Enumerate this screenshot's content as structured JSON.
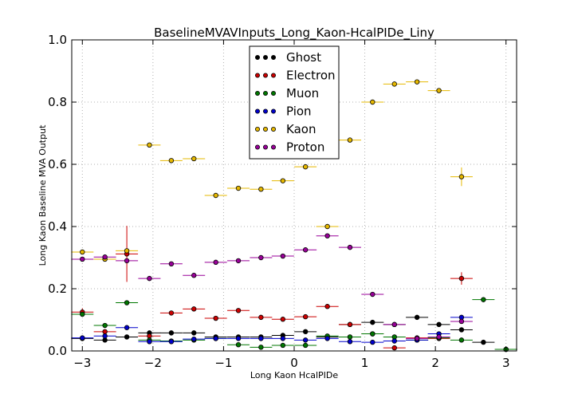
{
  "chart_data": {
    "type": "scatter",
    "title": "BaselineMVAVInputs_Long_Kaon-HcalPIDe_Liny",
    "xlabel": "Long Kaon HcalPIDe",
    "ylabel": "Long Kaon Baseline MVA Output",
    "xlim": [
      -3.15,
      3.15
    ],
    "ylim": [
      0.0,
      1.0
    ],
    "xticks": [
      -3,
      -2,
      -1,
      0,
      1,
      2,
      3
    ],
    "xtick_labels": [
      "−3",
      "−2",
      "−1",
      "0",
      "1",
      "2",
      "3"
    ],
    "yticks": [
      0.0,
      0.2,
      0.4,
      0.6,
      0.8,
      1.0
    ],
    "ytick_labels": [
      "0.0",
      "0.2",
      "0.4",
      "0.6",
      "0.8",
      "1.0"
    ],
    "grid": true,
    "legend_position": "top-center",
    "x_bin_half_width": 0.158,
    "series": [
      {
        "name": "Ghost",
        "color": "#000000",
        "points": [
          {
            "x": -3.0,
            "y": 0.04,
            "yerr": 0.003
          },
          {
            "x": -2.68,
            "y": 0.035,
            "yerr": 0.003
          },
          {
            "x": -2.37,
            "y": 0.045,
            "yerr": 0.003
          },
          {
            "x": -2.05,
            "y": 0.058,
            "yerr": 0.003
          },
          {
            "x": -1.74,
            "y": 0.058,
            "yerr": 0.003
          },
          {
            "x": -1.42,
            "y": 0.058,
            "yerr": 0.003
          },
          {
            "x": -1.11,
            "y": 0.045,
            "yerr": 0.003
          },
          {
            "x": -0.79,
            "y": 0.045,
            "yerr": 0.003
          },
          {
            "x": -0.47,
            "y": 0.045,
            "yerr": 0.003
          },
          {
            "x": -0.16,
            "y": 0.05,
            "yerr": 0.003
          },
          {
            "x": 0.16,
            "y": 0.062,
            "yerr": 0.004
          },
          {
            "x": 0.47,
            "y": 0.045,
            "yerr": 0.003
          },
          {
            "x": 0.79,
            "y": 0.085,
            "yerr": 0.004
          },
          {
            "x": 1.11,
            "y": 0.092,
            "yerr": 0.004
          },
          {
            "x": 1.42,
            "y": 0.085,
            "yerr": 0.004
          },
          {
            "x": 1.74,
            "y": 0.108,
            "yerr": 0.004
          },
          {
            "x": 2.05,
            "y": 0.085,
            "yerr": 0.004
          },
          {
            "x": 2.37,
            "y": 0.068,
            "yerr": 0.004
          },
          {
            "x": 2.68,
            "y": 0.028,
            "yerr": 0.003
          },
          {
            "x": 3.0,
            "y": 0.005,
            "yerr": 0.002
          }
        ]
      },
      {
        "name": "Electron",
        "color": "#cc0000",
        "points": [
          {
            "x": -3.0,
            "y": 0.125,
            "yerr": 0.012
          },
          {
            "x": -2.68,
            "y": 0.062,
            "yerr": 0.006
          },
          {
            "x": -2.37,
            "y": 0.312,
            "yerr": 0.09
          },
          {
            "x": -2.05,
            "y": 0.048,
            "yerr": 0.004
          },
          {
            "x": -1.74,
            "y": 0.122,
            "yerr": 0.005
          },
          {
            "x": -1.42,
            "y": 0.135,
            "yerr": 0.005
          },
          {
            "x": -1.11,
            "y": 0.105,
            "yerr": 0.004
          },
          {
            "x": -0.79,
            "y": 0.13,
            "yerr": 0.004
          },
          {
            "x": -0.47,
            "y": 0.108,
            "yerr": 0.004
          },
          {
            "x": -0.16,
            "y": 0.102,
            "yerr": 0.004
          },
          {
            "x": 0.16,
            "y": 0.11,
            "yerr": 0.004
          },
          {
            "x": 0.47,
            "y": 0.143,
            "yerr": 0.005
          },
          {
            "x": 0.79,
            "y": 0.085,
            "yerr": 0.004
          },
          {
            "x": 1.11,
            "y": 0.055,
            "yerr": 0.004
          },
          {
            "x": 1.42,
            "y": 0.01,
            "yerr": 0.003
          },
          {
            "x": 1.74,
            "y": 0.042,
            "yerr": 0.004
          },
          {
            "x": 2.05,
            "y": 0.04,
            "yerr": 0.004
          },
          {
            "x": 2.37,
            "y": 0.233,
            "yerr": 0.02
          }
        ]
      },
      {
        "name": "Muon",
        "color": "#007700",
        "points": [
          {
            "x": -3.0,
            "y": 0.118,
            "yerr": 0.006
          },
          {
            "x": -2.68,
            "y": 0.082,
            "yerr": 0.004
          },
          {
            "x": -2.37,
            "y": 0.155,
            "yerr": 0.005
          },
          {
            "x": -2.05,
            "y": 0.035,
            "yerr": 0.003
          },
          {
            "x": -1.74,
            "y": 0.032,
            "yerr": 0.003
          },
          {
            "x": -1.42,
            "y": 0.035,
            "yerr": 0.003
          },
          {
            "x": -1.11,
            "y": 0.04,
            "yerr": 0.003
          },
          {
            "x": -0.79,
            "y": 0.02,
            "yerr": 0.003
          },
          {
            "x": -0.47,
            "y": 0.012,
            "yerr": 0.003
          },
          {
            "x": -0.16,
            "y": 0.018,
            "yerr": 0.003
          },
          {
            "x": 0.16,
            "y": 0.018,
            "yerr": 0.003
          },
          {
            "x": 0.47,
            "y": 0.048,
            "yerr": 0.004
          },
          {
            "x": 0.79,
            "y": 0.045,
            "yerr": 0.004
          },
          {
            "x": 1.11,
            "y": 0.055,
            "yerr": 0.004
          },
          {
            "x": 1.42,
            "y": 0.045,
            "yerr": 0.004
          },
          {
            "x": 1.74,
            "y": 0.035,
            "yerr": 0.004
          },
          {
            "x": 2.05,
            "y": 0.042,
            "yerr": 0.004
          },
          {
            "x": 2.37,
            "y": 0.035,
            "yerr": 0.004
          },
          {
            "x": 2.68,
            "y": 0.165,
            "yerr": 0.008
          },
          {
            "x": 3.0,
            "y": 0.005,
            "yerr": 0.002
          }
        ]
      },
      {
        "name": "Pion",
        "color": "#0000cc",
        "points": [
          {
            "x": -3.0,
            "y": 0.042,
            "yerr": 0.003
          },
          {
            "x": -2.68,
            "y": 0.048,
            "yerr": 0.003
          },
          {
            "x": -2.37,
            "y": 0.075,
            "yerr": 0.004
          },
          {
            "x": -2.05,
            "y": 0.03,
            "yerr": 0.003
          },
          {
            "x": -1.74,
            "y": 0.03,
            "yerr": 0.003
          },
          {
            "x": -1.42,
            "y": 0.038,
            "yerr": 0.003
          },
          {
            "x": -1.11,
            "y": 0.04,
            "yerr": 0.003
          },
          {
            "x": -0.79,
            "y": 0.04,
            "yerr": 0.003
          },
          {
            "x": -0.47,
            "y": 0.04,
            "yerr": 0.003
          },
          {
            "x": -0.16,
            "y": 0.04,
            "yerr": 0.003
          },
          {
            "x": 0.16,
            "y": 0.035,
            "yerr": 0.003
          },
          {
            "x": 0.47,
            "y": 0.04,
            "yerr": 0.003
          },
          {
            "x": 0.79,
            "y": 0.03,
            "yerr": 0.003
          },
          {
            "x": 1.11,
            "y": 0.028,
            "yerr": 0.003
          },
          {
            "x": 1.42,
            "y": 0.032,
            "yerr": 0.003
          },
          {
            "x": 1.74,
            "y": 0.035,
            "yerr": 0.003
          },
          {
            "x": 2.05,
            "y": 0.055,
            "yerr": 0.004
          },
          {
            "x": 2.37,
            "y": 0.108,
            "yerr": 0.006
          }
        ]
      },
      {
        "name": "Kaon",
        "color": "#e6b800",
        "points": [
          {
            "x": -3.0,
            "y": 0.318,
            "yerr": 0.005
          },
          {
            "x": -2.68,
            "y": 0.295,
            "yerr": 0.005
          },
          {
            "x": -2.37,
            "y": 0.322,
            "yerr": 0.005
          },
          {
            "x": -2.05,
            "y": 0.662,
            "yerr": 0.004
          },
          {
            "x": -1.74,
            "y": 0.612,
            "yerr": 0.004
          },
          {
            "x": -1.42,
            "y": 0.618,
            "yerr": 0.004
          },
          {
            "x": -1.11,
            "y": 0.5,
            "yerr": 0.004
          },
          {
            "x": -0.79,
            "y": 0.523,
            "yerr": 0.004
          },
          {
            "x": -0.47,
            "y": 0.52,
            "yerr": 0.004
          },
          {
            "x": -0.16,
            "y": 0.547,
            "yerr": 0.004
          },
          {
            "x": 0.16,
            "y": 0.592,
            "yerr": 0.004
          },
          {
            "x": 0.47,
            "y": 0.4,
            "yerr": 0.004
          },
          {
            "x": 0.79,
            "y": 0.678,
            "yerr": 0.004
          },
          {
            "x": 1.11,
            "y": 0.8,
            "yerr": 0.004
          },
          {
            "x": 1.42,
            "y": 0.858,
            "yerr": 0.004
          },
          {
            "x": 1.74,
            "y": 0.865,
            "yerr": 0.004
          },
          {
            "x": 2.05,
            "y": 0.837,
            "yerr": 0.005
          },
          {
            "x": 2.37,
            "y": 0.56,
            "yerr": 0.03
          }
        ]
      },
      {
        "name": "Proton",
        "color": "#990099",
        "points": [
          {
            "x": -3.0,
            "y": 0.295,
            "yerr": 0.005
          },
          {
            "x": -2.68,
            "y": 0.302,
            "yerr": 0.005
          },
          {
            "x": -2.37,
            "y": 0.29,
            "yerr": 0.005
          },
          {
            "x": -2.05,
            "y": 0.233,
            "yerr": 0.004
          },
          {
            "x": -1.74,
            "y": 0.28,
            "yerr": 0.004
          },
          {
            "x": -1.42,
            "y": 0.243,
            "yerr": 0.004
          },
          {
            "x": -1.11,
            "y": 0.285,
            "yerr": 0.004
          },
          {
            "x": -0.79,
            "y": 0.29,
            "yerr": 0.004
          },
          {
            "x": -0.47,
            "y": 0.3,
            "yerr": 0.004
          },
          {
            "x": -0.16,
            "y": 0.305,
            "yerr": 0.004
          },
          {
            "x": 0.16,
            "y": 0.325,
            "yerr": 0.004
          },
          {
            "x": 0.47,
            "y": 0.37,
            "yerr": 0.004
          },
          {
            "x": 0.79,
            "y": 0.333,
            "yerr": 0.004
          },
          {
            "x": 1.11,
            "y": 0.182,
            "yerr": 0.004
          },
          {
            "x": 1.42,
            "y": 0.085,
            "yerr": 0.004
          },
          {
            "x": 1.74,
            "y": 0.04,
            "yerr": 0.004
          },
          {
            "x": 2.05,
            "y": 0.045,
            "yerr": 0.004
          },
          {
            "x": 2.37,
            "y": 0.095,
            "yerr": 0.006
          }
        ]
      }
    ]
  }
}
